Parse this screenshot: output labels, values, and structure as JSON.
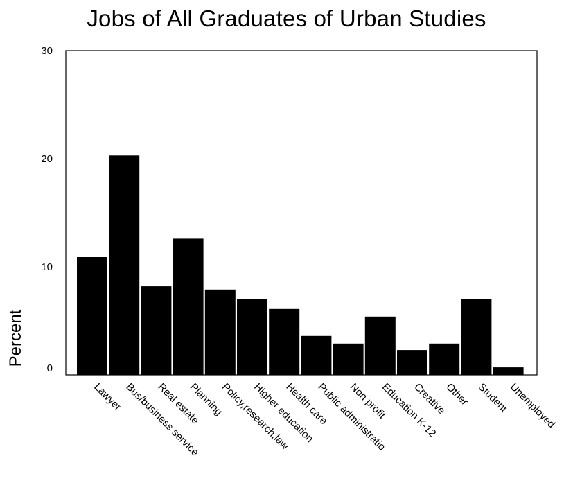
{
  "chart_data": {
    "type": "bar",
    "title": "Jobs of All Graduates of Urban Studies",
    "xlabel": "",
    "ylabel": "Percent",
    "ylim": [
      0,
      30
    ],
    "yticks": [
      0,
      10,
      20,
      30
    ],
    "grid": false,
    "categories": [
      "Lawyer",
      "Bus/business service",
      "Real estate",
      "Planning",
      "Policy,research,law",
      "Higher education",
      "Health care",
      "Public administratio",
      "Non profit",
      "Education K-12",
      "Creative",
      "Other",
      "Student",
      "Unemployed"
    ],
    "values": [
      10.9,
      20.3,
      8.2,
      12.6,
      7.9,
      7.0,
      6.1,
      3.6,
      2.9,
      5.4,
      2.3,
      2.9,
      7.0,
      0.7
    ],
    "bar_color": "#000000"
  }
}
